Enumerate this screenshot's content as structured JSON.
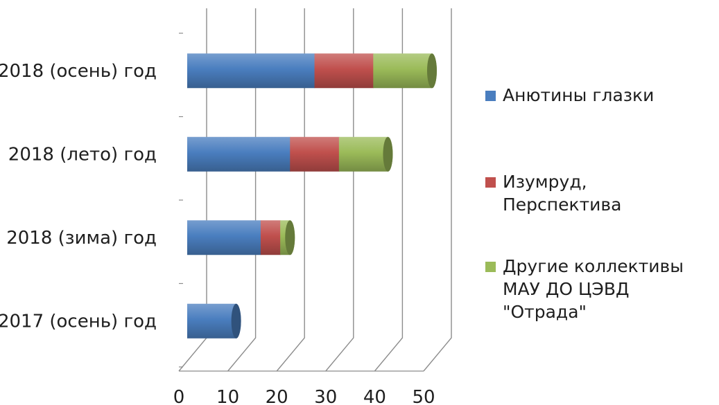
{
  "chart_data": {
    "type": "bar",
    "orientation": "horizontal",
    "stacked": true,
    "style": "3d-cylinder",
    "categories": [
      "2018 (осень) год",
      "2018 (лето) год",
      "2018 (зима) год",
      "2017 (осень) год"
    ],
    "series": [
      {
        "name": "Анютины глазки",
        "color": "#4a7ebf",
        "values": [
          26,
          21,
          15,
          10
        ]
      },
      {
        "name": "Изумруд, Перспектива",
        "color": "#c0504d",
        "values": [
          12,
          10,
          4,
          0
        ]
      },
      {
        "name": "Другие коллективы\nМАУ ДО ЦЭВД\n\"Отрада\"",
        "color": "#9bbb59",
        "values": [
          12,
          10,
          2,
          0
        ]
      }
    ],
    "xlim": [
      0,
      50
    ],
    "xticks": [
      "0",
      "10",
      "20",
      "30",
      "40",
      "50"
    ],
    "grid": true,
    "legend_position": "right"
  }
}
